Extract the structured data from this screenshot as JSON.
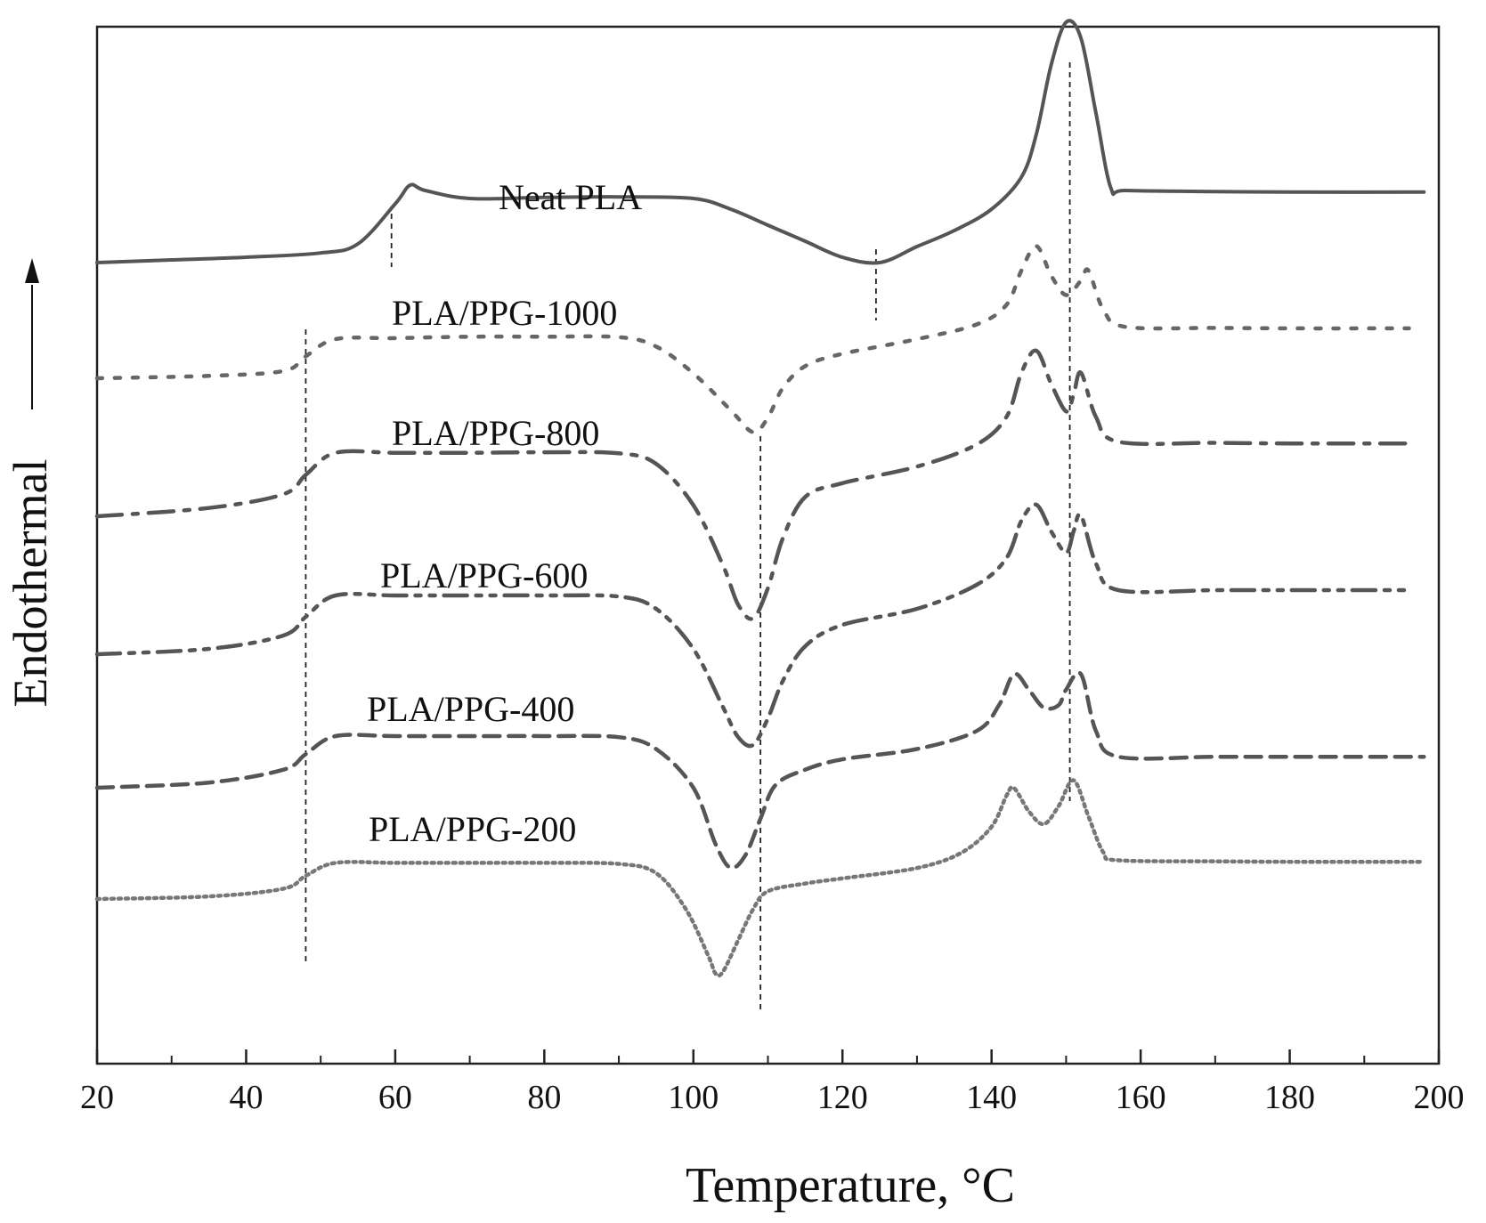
{
  "chart_data": {
    "type": "line",
    "title": "",
    "xlabel": "Temperature, °C",
    "ylabel": "Endothermal",
    "xlim": [
      20,
      200
    ],
    "xticks": [
      20,
      40,
      60,
      80,
      100,
      120,
      140,
      160,
      180,
      200
    ],
    "yticks_shown": false,
    "series": [
      {
        "name": "Neat PLA",
        "style": "solid",
        "color": "#555555",
        "points": [
          [
            20,
            0.0
          ],
          [
            30,
            0.05
          ],
          [
            40,
            0.1
          ],
          [
            50,
            0.18
          ],
          [
            55,
            0.35
          ],
          [
            60,
            1.1
          ],
          [
            62,
            1.45
          ],
          [
            64,
            1.35
          ],
          [
            70,
            1.2
          ],
          [
            80,
            1.22
          ],
          [
            90,
            1.23
          ],
          [
            100,
            1.2
          ],
          [
            105,
            1.0
          ],
          [
            110,
            0.7
          ],
          [
            115,
            0.4
          ],
          [
            120,
            0.1
          ],
          [
            125,
            0.0
          ],
          [
            130,
            0.3
          ],
          [
            135,
            0.6
          ],
          [
            140,
            1.0
          ],
          [
            144,
            1.6
          ],
          [
            146,
            2.4
          ],
          [
            148,
            3.7
          ],
          [
            150,
            4.5
          ],
          [
            152,
            4.2
          ],
          [
            154,
            2.8
          ],
          [
            156,
            1.4
          ],
          [
            158,
            1.35
          ],
          [
            170,
            1.33
          ],
          [
            180,
            1.32
          ],
          [
            198,
            1.32
          ]
        ]
      },
      {
        "name": "PLA/PPG-1000",
        "style": "dotted",
        "color": "#666666",
        "points": [
          [
            20,
            0.0
          ],
          [
            35,
            0.05
          ],
          [
            45,
            0.15
          ],
          [
            48,
            0.45
          ],
          [
            52,
            0.8
          ],
          [
            60,
            0.82
          ],
          [
            70,
            0.85
          ],
          [
            80,
            0.85
          ],
          [
            90,
            0.84
          ],
          [
            95,
            0.65
          ],
          [
            100,
            0.1
          ],
          [
            105,
            -0.65
          ],
          [
            108,
            -1.1
          ],
          [
            110,
            -0.8
          ],
          [
            112,
            -0.2
          ],
          [
            115,
            0.25
          ],
          [
            120,
            0.5
          ],
          [
            130,
            0.8
          ],
          [
            138,
            1.1
          ],
          [
            142,
            1.5
          ],
          [
            144,
            2.2
          ],
          [
            146,
            2.7
          ],
          [
            148,
            2.1
          ],
          [
            150,
            1.7
          ],
          [
            152,
            2.0
          ],
          [
            153,
            2.2
          ],
          [
            155,
            1.4
          ],
          [
            158,
            1.05
          ],
          [
            170,
            1.03
          ],
          [
            180,
            1.02
          ],
          [
            196,
            1.02
          ]
        ]
      },
      {
        "name": "PLA/PPG-800",
        "style": "dashdot",
        "color": "#555555",
        "points": [
          [
            20,
            0.0
          ],
          [
            35,
            0.15
          ],
          [
            45,
            0.4
          ],
          [
            48,
            0.75
          ],
          [
            52,
            1.15
          ],
          [
            60,
            1.15
          ],
          [
            70,
            1.15
          ],
          [
            80,
            1.16
          ],
          [
            90,
            1.14
          ],
          [
            95,
            0.95
          ],
          [
            100,
            0.2
          ],
          [
            104,
            -0.9
          ],
          [
            106,
            -1.6
          ],
          [
            108,
            -1.85
          ],
          [
            110,
            -1.3
          ],
          [
            112,
            -0.4
          ],
          [
            115,
            0.35
          ],
          [
            120,
            0.6
          ],
          [
            130,
            0.9
          ],
          [
            138,
            1.3
          ],
          [
            142,
            1.8
          ],
          [
            144,
            2.6
          ],
          [
            146,
            3.0
          ],
          [
            148,
            2.4
          ],
          [
            150,
            1.9
          ],
          [
            151,
            2.2
          ],
          [
            152,
            2.6
          ],
          [
            154,
            1.8
          ],
          [
            157,
            1.35
          ],
          [
            170,
            1.33
          ],
          [
            180,
            1.32
          ],
          [
            196,
            1.32
          ]
        ]
      },
      {
        "name": "PLA/PPG-600",
        "style": "dashdotdot",
        "color": "#555555",
        "points": [
          [
            20,
            0.0
          ],
          [
            35,
            0.1
          ],
          [
            45,
            0.35
          ],
          [
            48,
            0.7
          ],
          [
            52,
            1.1
          ],
          [
            60,
            1.1
          ],
          [
            70,
            1.1
          ],
          [
            80,
            1.1
          ],
          [
            90,
            1.08
          ],
          [
            95,
            0.85
          ],
          [
            100,
            0.1
          ],
          [
            104,
            -1.0
          ],
          [
            106,
            -1.55
          ],
          [
            108,
            -1.7
          ],
          [
            110,
            -1.2
          ],
          [
            112,
            -0.5
          ],
          [
            115,
            0.15
          ],
          [
            120,
            0.55
          ],
          [
            130,
            0.85
          ],
          [
            138,
            1.3
          ],
          [
            142,
            1.8
          ],
          [
            144,
            2.5
          ],
          [
            146,
            2.8
          ],
          [
            148,
            2.3
          ],
          [
            150,
            1.9
          ],
          [
            151,
            2.3
          ],
          [
            152,
            2.6
          ],
          [
            154,
            1.7
          ],
          [
            157,
            1.2
          ],
          [
            170,
            1.2
          ],
          [
            180,
            1.2
          ],
          [
            196,
            1.2
          ]
        ]
      },
      {
        "name": "PLA/PPG-400",
        "style": "dashed",
        "color": "#555555",
        "points": [
          [
            20,
            0.0
          ],
          [
            35,
            0.1
          ],
          [
            45,
            0.35
          ],
          [
            48,
            0.65
          ],
          [
            52,
            1.0
          ],
          [
            60,
            1.0
          ],
          [
            70,
            1.0
          ],
          [
            80,
            1.0
          ],
          [
            90,
            0.98
          ],
          [
            95,
            0.75
          ],
          [
            100,
            0.0
          ],
          [
            103,
            -1.1
          ],
          [
            105,
            -1.55
          ],
          [
            107,
            -1.3
          ],
          [
            109,
            -0.6
          ],
          [
            111,
            0.05
          ],
          [
            115,
            0.35
          ],
          [
            120,
            0.55
          ],
          [
            130,
            0.75
          ],
          [
            138,
            1.1
          ],
          [
            141,
            1.6
          ],
          [
            143,
            2.2
          ],
          [
            145,
            1.9
          ],
          [
            147,
            1.55
          ],
          [
            149,
            1.6
          ],
          [
            150,
            1.9
          ],
          [
            152,
            2.2
          ],
          [
            154,
            1.1
          ],
          [
            157,
            0.6
          ],
          [
            170,
            0.6
          ],
          [
            180,
            0.6
          ],
          [
            198,
            0.6
          ]
        ]
      },
      {
        "name": "PLA/PPG-200",
        "style": "dotted-fine",
        "color": "#777777",
        "points": [
          [
            20,
            0.0
          ],
          [
            35,
            0.05
          ],
          [
            45,
            0.2
          ],
          [
            48,
            0.45
          ],
          [
            52,
            0.7
          ],
          [
            60,
            0.7
          ],
          [
            70,
            0.7
          ],
          [
            80,
            0.7
          ],
          [
            90,
            0.68
          ],
          [
            95,
            0.5
          ],
          [
            99,
            -0.2
          ],
          [
            102,
            -1.1
          ],
          [
            103,
            -1.45
          ],
          [
            104,
            -1.4
          ],
          [
            106,
            -0.8
          ],
          [
            108,
            -0.2
          ],
          [
            110,
            0.15
          ],
          [
            115,
            0.3
          ],
          [
            120,
            0.4
          ],
          [
            130,
            0.6
          ],
          [
            136,
            0.9
          ],
          [
            140,
            1.4
          ],
          [
            142,
            2.0
          ],
          [
            143,
            2.15
          ],
          [
            145,
            1.7
          ],
          [
            147,
            1.45
          ],
          [
            149,
            1.8
          ],
          [
            151,
            2.3
          ],
          [
            153,
            1.6
          ],
          [
            155,
            0.9
          ],
          [
            157,
            0.75
          ],
          [
            170,
            0.73
          ],
          [
            180,
            0.72
          ],
          [
            198,
            0.72
          ]
        ]
      }
    ],
    "reference_lines_x": [
      48,
      59.5,
      109,
      124.5,
      150.5
    ]
  }
}
